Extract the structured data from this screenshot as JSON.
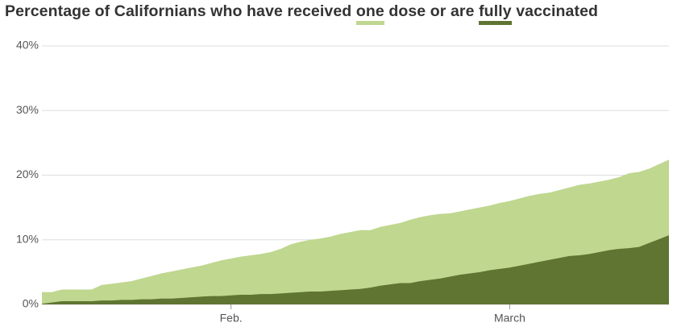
{
  "chart_data": {
    "type": "area",
    "title_parts": [
      "Percentage of Californians who have received",
      "dose or are",
      "vaccinated"
    ],
    "categories": [
      null,
      null,
      null,
      null,
      null,
      null,
      null,
      null,
      null,
      null,
      null,
      null,
      null,
      null,
      null,
      null,
      null,
      null,
      null,
      "Feb.",
      null,
      null,
      null,
      null,
      null,
      null,
      null,
      null,
      null,
      null,
      null,
      null,
      null,
      null,
      null,
      null,
      null,
      null,
      null,
      null,
      null,
      null,
      null,
      null,
      null,
      null,
      null,
      "March",
      null,
      null,
      null,
      null,
      null,
      null,
      null,
      null,
      null,
      null,
      null,
      null,
      null,
      null,
      null,
      null
    ],
    "series": [
      {
        "name": "one",
        "color": "#bfd78f",
        "values": [
          1.9,
          1.9,
          2.3,
          2.3,
          2.3,
          2.3,
          3.0,
          3.2,
          3.4,
          3.6,
          4.0,
          4.4,
          4.8,
          5.1,
          5.4,
          5.7,
          6.0,
          6.4,
          6.8,
          7.1,
          7.4,
          7.6,
          7.8,
          8.1,
          8.6,
          9.3,
          9.7,
          10.0,
          10.2,
          10.5,
          10.9,
          11.2,
          11.5,
          11.5,
          12.0,
          12.3,
          12.6,
          13.1,
          13.5,
          13.8,
          14.0,
          14.1,
          14.4,
          14.7,
          15.0,
          15.3,
          15.7,
          16.0,
          16.4,
          16.8,
          17.1,
          17.3,
          17.7,
          18.1,
          18.5,
          18.7,
          19.0,
          19.3,
          19.7,
          20.3,
          20.5,
          21.0,
          21.7,
          22.4
        ]
      },
      {
        "name": "fully",
        "color": "#5f7531",
        "values": [
          0.1,
          0.3,
          0.5,
          0.5,
          0.5,
          0.5,
          0.6,
          0.6,
          0.7,
          0.7,
          0.8,
          0.8,
          0.9,
          0.9,
          1.0,
          1.1,
          1.2,
          1.3,
          1.3,
          1.4,
          1.5,
          1.5,
          1.6,
          1.6,
          1.7,
          1.8,
          1.9,
          2.0,
          2.0,
          2.1,
          2.2,
          2.3,
          2.4,
          2.6,
          2.9,
          3.1,
          3.3,
          3.3,
          3.6,
          3.8,
          4.0,
          4.3,
          4.6,
          4.8,
          5.0,
          5.3,
          5.5,
          5.7,
          6.0,
          6.3,
          6.6,
          6.9,
          7.2,
          7.5,
          7.6,
          7.8,
          8.1,
          8.4,
          8.6,
          8.7,
          8.9,
          9.5,
          10.1,
          10.7
        ]
      }
    ],
    "ylim": [
      0,
      40
    ],
    "yticks": [
      {
        "value": 0,
        "label": "0%"
      },
      {
        "value": 10,
        "label": "10%"
      },
      {
        "value": 20,
        "label": "20%"
      },
      {
        "value": 30,
        "label": "30%"
      },
      {
        "value": 40,
        "label": "40%"
      }
    ],
    "grid": true
  }
}
